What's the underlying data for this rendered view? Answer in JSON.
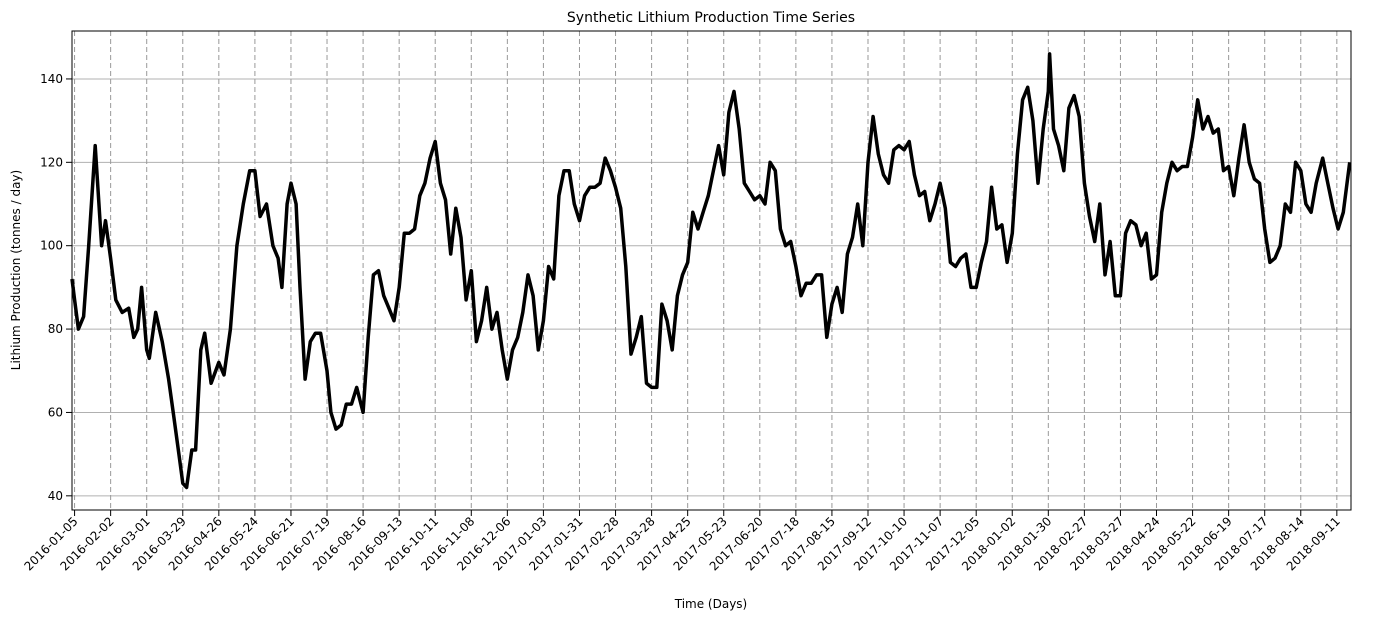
{
  "chart_data": {
    "type": "line",
    "title": "Synthetic Lithium Production Time Series",
    "x_label": "Time (Days)",
    "y_label": "Lithium Production (tonnes / day)",
    "xlim": [
      "2016-01-03",
      "2018-09-22"
    ],
    "xticks": [
      "2016-01-05",
      "2016-02-02",
      "2016-03-01",
      "2016-03-29",
      "2016-04-26",
      "2016-05-24",
      "2016-06-21",
      "2016-07-19",
      "2016-08-16",
      "2016-09-13",
      "2016-10-11",
      "2016-11-08",
      "2016-12-06",
      "2017-01-03",
      "2017-01-31",
      "2017-02-28",
      "2017-03-28",
      "2017-04-25",
      "2017-05-23",
      "2017-06-20",
      "2017-07-18",
      "2017-08-15",
      "2017-09-12",
      "2017-10-10",
      "2017-11-07",
      "2017-12-05",
      "2018-01-02",
      "2018-01-30",
      "2018-02-27",
      "2018-03-27",
      "2018-04-24",
      "2018-05-22",
      "2018-06-19",
      "2018-07-17",
      "2018-08-14",
      "2018-09-11"
    ],
    "ylim": [
      36.6,
      151.5
    ],
    "yticks": [
      40,
      60,
      80,
      100,
      120,
      140
    ],
    "grid": true,
    "color": "#000000",
    "x": [
      "2016-01-03",
      "2016-01-05",
      "2016-01-08",
      "2016-01-12",
      "2016-01-16",
      "2016-01-21",
      "2016-01-26",
      "2016-01-29",
      "2016-02-02",
      "2016-02-06",
      "2016-02-11",
      "2016-02-16",
      "2016-02-20",
      "2016-02-23",
      "2016-02-26",
      "2016-03-01",
      "2016-03-03",
      "2016-03-08",
      "2016-03-13",
      "2016-03-18",
      "2016-03-22",
      "2016-03-26",
      "2016-03-29",
      "2016-04-01",
      "2016-04-05",
      "2016-04-08",
      "2016-04-12",
      "2016-04-15",
      "2016-04-20",
      "2016-04-26",
      "2016-04-30",
      "2016-05-05",
      "2016-05-10",
      "2016-05-15",
      "2016-05-20",
      "2016-05-24",
      "2016-05-28",
      "2016-06-02",
      "2016-06-07",
      "2016-06-11",
      "2016-06-14",
      "2016-06-18",
      "2016-06-21",
      "2016-06-25",
      "2016-06-28",
      "2016-07-02",
      "2016-07-06",
      "2016-07-10",
      "2016-07-14",
      "2016-07-19",
      "2016-07-22",
      "2016-07-26",
      "2016-07-30",
      "2016-08-03",
      "2016-08-07",
      "2016-08-11",
      "2016-08-16",
      "2016-08-20",
      "2016-08-24",
      "2016-08-28",
      "2016-09-01",
      "2016-09-05",
      "2016-09-09",
      "2016-09-13",
      "2016-09-17",
      "2016-09-21",
      "2016-09-25",
      "2016-09-29",
      "2016-10-03",
      "2016-10-07",
      "2016-10-11",
      "2016-10-15",
      "2016-10-19",
      "2016-10-23",
      "2016-10-27",
      "2016-10-31",
      "2016-11-04",
      "2016-11-08",
      "2016-11-12",
      "2016-11-16",
      "2016-11-20",
      "2016-11-24",
      "2016-11-28",
      "2016-12-02",
      "2016-12-06",
      "2016-12-10",
      "2016-12-14",
      "2016-12-18",
      "2016-12-22",
      "2016-12-26",
      "2016-12-30",
      "2017-01-03",
      "2017-01-07",
      "2017-01-11",
      "2017-01-15",
      "2017-01-19",
      "2017-01-23",
      "2017-01-27",
      "2017-01-31",
      "2017-02-04",
      "2017-02-08",
      "2017-02-12",
      "2017-02-16",
      "2017-02-20",
      "2017-02-24",
      "2017-02-28",
      "2017-03-04",
      "2017-03-08",
      "2017-03-12",
      "2017-03-16",
      "2017-03-20",
      "2017-03-24",
      "2017-03-28",
      "2017-04-01",
      "2017-04-05",
      "2017-04-09",
      "2017-04-13",
      "2017-04-17",
      "2017-04-21",
      "2017-04-25",
      "2017-04-29",
      "2017-05-03",
      "2017-05-07",
      "2017-05-11",
      "2017-05-15",
      "2017-05-19",
      "2017-05-23",
      "2017-05-27",
      "2017-05-31",
      "2017-06-04",
      "2017-06-08",
      "2017-06-12",
      "2017-06-16",
      "2017-06-20",
      "2017-06-24",
      "2017-06-28",
      "2017-07-02",
      "2017-07-06",
      "2017-07-10",
      "2017-07-14",
      "2017-07-18",
      "2017-07-22",
      "2017-07-26",
      "2017-07-30",
      "2017-08-03",
      "2017-08-07",
      "2017-08-11",
      "2017-08-15",
      "2017-08-19",
      "2017-08-23",
      "2017-08-27",
      "2017-08-31",
      "2017-09-04",
      "2017-09-08",
      "2017-09-12",
      "2017-09-16",
      "2017-09-20",
      "2017-09-24",
      "2017-09-28",
      "2017-10-02",
      "2017-10-06",
      "2017-10-10",
      "2017-10-14",
      "2017-10-18",
      "2017-10-22",
      "2017-10-26",
      "2017-10-30",
      "2017-11-03",
      "2017-11-07",
      "2017-11-11",
      "2017-11-15",
      "2017-11-19",
      "2017-11-23",
      "2017-11-27",
      "2017-12-01",
      "2017-12-05",
      "2017-12-09",
      "2017-12-13",
      "2017-12-17",
      "2017-12-21",
      "2017-12-25",
      "2017-12-29",
      "2018-01-02",
      "2018-01-06",
      "2018-01-10",
      "2018-01-14",
      "2018-01-18",
      "2018-01-22",
      "2018-01-26",
      "2018-01-30",
      "2018-01-31",
      "2018-02-03",
      "2018-02-07",
      "2018-02-11",
      "2018-02-15",
      "2018-02-19",
      "2018-02-23",
      "2018-02-27",
      "2018-03-03",
      "2018-03-07",
      "2018-03-11",
      "2018-03-15",
      "2018-03-19",
      "2018-03-23",
      "2018-03-27",
      "2018-03-31",
      "2018-04-04",
      "2018-04-08",
      "2018-04-12",
      "2018-04-16",
      "2018-04-20",
      "2018-04-24",
      "2018-04-28",
      "2018-05-02",
      "2018-05-06",
      "2018-05-10",
      "2018-05-14",
      "2018-05-18",
      "2018-05-22",
      "2018-05-26",
      "2018-05-30",
      "2018-06-03",
      "2018-06-07",
      "2018-06-11",
      "2018-06-15",
      "2018-06-19",
      "2018-06-23",
      "2018-06-27",
      "2018-07-01",
      "2018-07-05",
      "2018-07-09",
      "2018-07-13",
      "2018-07-17",
      "2018-07-21",
      "2018-07-25",
      "2018-07-29",
      "2018-08-02",
      "2018-08-06",
      "2018-08-10",
      "2018-08-14",
      "2018-08-18",
      "2018-08-22",
      "2018-08-26",
      "2018-08-31",
      "2018-09-04",
      "2018-09-08",
      "2018-09-12",
      "2018-09-16",
      "2018-09-21"
    ],
    "values": [
      92,
      87,
      80,
      83,
      100,
      124,
      100,
      106,
      97,
      87,
      84,
      85,
      78,
      80,
      90,
      75,
      73,
      84,
      77,
      68,
      59,
      50,
      43,
      42,
      51,
      51,
      75,
      79,
      67,
      72,
      69,
      80,
      100,
      110,
      118,
      118,
      107,
      110,
      100,
      97,
      90,
      110,
      115,
      110,
      90,
      68,
      77,
      79,
      79,
      70,
      60,
      56,
      57,
      62,
      62,
      66,
      60,
      78,
      93,
      94,
      88,
      85,
      82,
      90,
      103,
      103,
      104,
      112,
      115,
      121,
      125,
      115,
      111,
      98,
      109,
      102,
      87,
      94,
      77,
      82,
      90,
      80,
      84,
      75,
      68,
      75,
      78,
      84,
      93,
      88,
      75,
      82,
      95,
      92,
      112,
      118,
      118,
      110,
      106,
      112,
      114,
      114,
      115,
      121,
      118,
      114,
      109,
      95,
      74,
      78,
      83,
      67,
      66,
      66,
      86,
      82,
      75,
      88,
      93,
      96,
      108,
      104,
      108,
      112,
      118,
      124,
      117,
      132,
      137,
      128,
      115,
      113,
      111,
      112,
      110,
      120,
      118,
      104,
      100,
      101,
      95,
      88,
      91,
      91,
      93,
      93,
      78,
      86,
      90,
      84,
      98,
      102,
      110,
      100,
      120,
      131,
      122,
      117,
      115,
      123,
      124,
      123,
      125,
      117,
      112,
      113,
      106,
      110,
      115,
      109,
      96,
      95,
      97,
      98,
      90,
      90,
      96,
      101,
      114,
      104,
      105,
      96,
      103,
      122,
      135,
      138,
      130,
      115,
      128,
      137,
      146,
      128,
      124,
      118,
      133,
      136,
      131,
      115,
      107,
      101,
      110,
      93,
      101,
      88,
      88,
      103,
      106,
      105,
      100,
      103,
      92,
      93,
      108,
      115,
      120,
      118,
      119,
      119,
      126,
      135,
      128,
      131,
      127,
      128,
      118,
      119,
      112,
      121,
      129,
      120,
      116,
      115,
      104,
      96,
      97,
      100,
      110,
      108,
      120,
      118,
      110,
      108,
      115,
      121,
      115,
      109,
      104,
      108,
      120
    ]
  }
}
